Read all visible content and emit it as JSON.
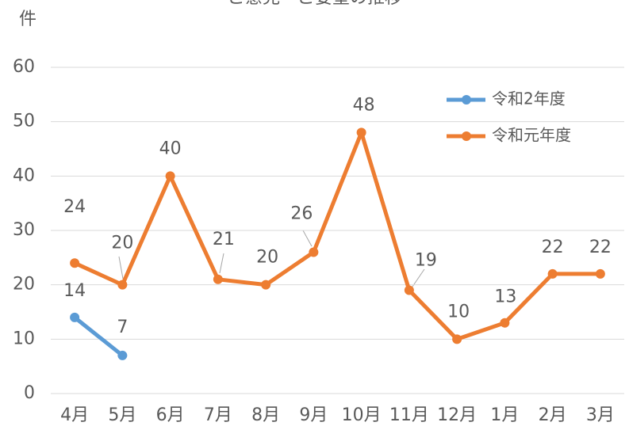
{
  "chart_data": {
    "type": "line",
    "title": "ご意見・ご要望の推移",
    "y_label": "件",
    "categories": [
      "4月",
      "5月",
      "6月",
      "7月",
      "8月",
      "9月",
      "10月",
      "11月",
      "12月",
      "1月",
      "2月",
      "3月"
    ],
    "series": [
      {
        "name": "令和2年度",
        "color": "#5b9bd5",
        "values": [
          14,
          7,
          null,
          null,
          null,
          null,
          null,
          null,
          null,
          null,
          null,
          null
        ]
      },
      {
        "name": "令和元年度",
        "color": "#ed7d31",
        "values": [
          24,
          20,
          40,
          21,
          20,
          26,
          48,
          19,
          10,
          13,
          22,
          22
        ]
      }
    ],
    "ylim": [
      0,
      60
    ],
    "yticks": [
      0,
      10,
      20,
      30,
      40,
      50,
      60
    ],
    "grid": true
  }
}
